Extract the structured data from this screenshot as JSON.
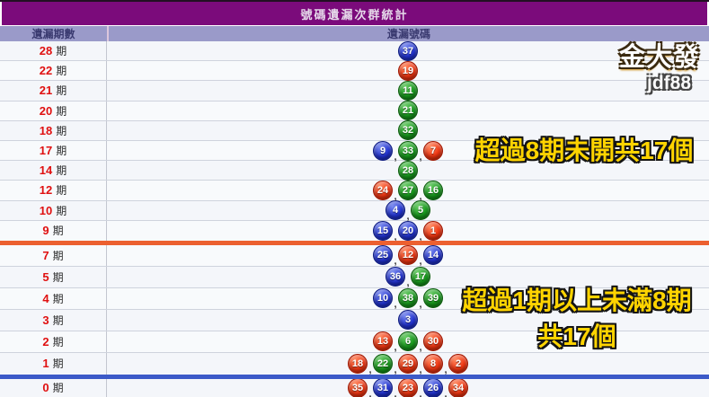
{
  "title": "號碼遺漏次群統計",
  "columns": {
    "left": "遺漏期數",
    "right": "遺漏號碼"
  },
  "period_suffix": "期",
  "separator_comma": ",",
  "watermark": {
    "line1": "金大發",
    "line2": "jdf88"
  },
  "annotations": {
    "top": "超過8期未開共17個",
    "bottom_line1": "超過1期以上未滿8期",
    "bottom_line2": "共17個"
  },
  "colors": {
    "title_bar": "#7b0b7b",
    "header_bg": "#9a9ac9",
    "ball_red": "#ee3512",
    "ball_blue": "#2233d0",
    "ball_green": "#17991c",
    "orange_divider": "#ec6030",
    "blue_divider": "#3c5ac8",
    "annotation_yellow": "#ffd400",
    "period_number_red": "#e01010"
  },
  "dividers": {
    "orange_after_period": "9",
    "blue_after_period": "1"
  },
  "rows": [
    {
      "period": "28",
      "balls": [
        {
          "n": "37",
          "color": "blue"
        }
      ]
    },
    {
      "period": "22",
      "balls": [
        {
          "n": "19",
          "color": "red"
        }
      ]
    },
    {
      "period": "21",
      "balls": [
        {
          "n": "11",
          "color": "green"
        }
      ]
    },
    {
      "period": "20",
      "balls": [
        {
          "n": "21",
          "color": "green"
        }
      ]
    },
    {
      "period": "18",
      "balls": [
        {
          "n": "32",
          "color": "green"
        }
      ]
    },
    {
      "period": "17",
      "balls": [
        {
          "n": "9",
          "color": "blue"
        },
        {
          "n": "33",
          "color": "green"
        },
        {
          "n": "7",
          "color": "red"
        }
      ]
    },
    {
      "period": "14",
      "balls": [
        {
          "n": "28",
          "color": "green"
        }
      ]
    },
    {
      "period": "12",
      "balls": [
        {
          "n": "24",
          "color": "red"
        },
        {
          "n": "27",
          "color": "green"
        },
        {
          "n": "16",
          "color": "green"
        }
      ]
    },
    {
      "period": "10",
      "balls": [
        {
          "n": "4",
          "color": "blue"
        },
        {
          "n": "5",
          "color": "green"
        }
      ]
    },
    {
      "period": "9",
      "balls": [
        {
          "n": "15",
          "color": "blue"
        },
        {
          "n": "20",
          "color": "blue"
        },
        {
          "n": "1",
          "color": "red"
        }
      ]
    },
    {
      "period": "7",
      "balls": [
        {
          "n": "25",
          "color": "blue"
        },
        {
          "n": "12",
          "color": "red"
        },
        {
          "n": "14",
          "color": "blue"
        }
      ]
    },
    {
      "period": "5",
      "balls": [
        {
          "n": "36",
          "color": "blue"
        },
        {
          "n": "17",
          "color": "green"
        }
      ]
    },
    {
      "period": "4",
      "balls": [
        {
          "n": "10",
          "color": "blue"
        },
        {
          "n": "38",
          "color": "green"
        },
        {
          "n": "39",
          "color": "green"
        }
      ]
    },
    {
      "period": "3",
      "balls": [
        {
          "n": "3",
          "color": "blue"
        }
      ]
    },
    {
      "period": "2",
      "balls": [
        {
          "n": "13",
          "color": "red"
        },
        {
          "n": "6",
          "color": "green"
        },
        {
          "n": "30",
          "color": "red"
        }
      ]
    },
    {
      "period": "1",
      "balls": [
        {
          "n": "18",
          "color": "red"
        },
        {
          "n": "22",
          "color": "green"
        },
        {
          "n": "29",
          "color": "red"
        },
        {
          "n": "8",
          "color": "red"
        },
        {
          "n": "2",
          "color": "red"
        }
      ]
    },
    {
      "period": "0",
      "balls": [
        {
          "n": "35",
          "color": "red"
        },
        {
          "n": "31",
          "color": "blue"
        },
        {
          "n": "23",
          "color": "red"
        },
        {
          "n": "26",
          "color": "blue"
        },
        {
          "n": "34",
          "color": "red"
        }
      ]
    }
  ]
}
